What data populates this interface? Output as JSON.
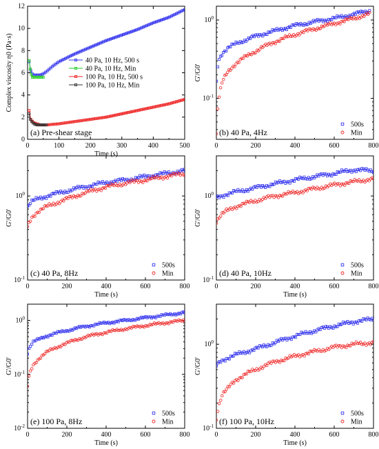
{
  "figure": {
    "panels": [
      {
        "id": "a",
        "panel_label": "(a) Pre-shear stage",
        "legend_position": "right-middle"
      },
      {
        "id": "b",
        "panel_label": "(b) 40 Pa, 4Hz",
        "legend_position": "bottom-right"
      },
      {
        "id": "c",
        "panel_label": "(c) 40 Pa, 8Hz",
        "legend_position": "bottom-right"
      },
      {
        "id": "d",
        "panel_label": "(d) 40 Pa, 10Hz",
        "legend_position": "bottom-right"
      },
      {
        "id": "e",
        "panel_label": "(e) 100 Pa, 8Hz",
        "legend_position": "bottom-right"
      },
      {
        "id": "f",
        "panel_label": "(f) 100 Pa, 10Hz",
        "legend_position": "bottom-right"
      }
    ]
  },
  "colors": {
    "blue": "#3333ee",
    "green": "#22cc22",
    "red": "#ee2222",
    "black": "#333333"
  },
  "chart_data": [
    {
      "type": "line",
      "panel": "a",
      "title": "(a) Pre-shear stage",
      "xlabel": "Time (s)",
      "ylabel": "Complex viscosity η0 (Pa·s)",
      "xlim": [
        0,
        500
      ],
      "ylim": [
        0,
        12
      ],
      "xticks": [
        0,
        100,
        200,
        300,
        400,
        500
      ],
      "yticks": [
        0,
        2,
        4,
        6,
        8,
        10,
        12
      ],
      "yscale": "linear",
      "grid": false,
      "legend": "right-middle",
      "series": [
        {
          "name": "40 Pa, 10 Hz, 500 s",
          "color": "#3333ee",
          "marker": "square",
          "x": [
            5,
            10,
            15,
            20,
            30,
            40,
            50,
            60,
            80,
            100,
            150,
            200,
            250,
            300,
            350,
            400,
            450,
            500
          ],
          "y": [
            7.0,
            6.2,
            5.9,
            5.8,
            5.8,
            5.8,
            5.9,
            6.1,
            6.6,
            7.0,
            7.7,
            8.3,
            8.9,
            9.4,
            9.9,
            10.5,
            11.0,
            11.7
          ]
        },
        {
          "name": "40 Pa, 10 Hz, Min",
          "color": "#22cc22",
          "marker": "square",
          "x": [
            5,
            10,
            15,
            20,
            30,
            40,
            50
          ],
          "y": [
            7.1,
            6.0,
            5.6,
            5.6,
            5.6,
            5.6,
            5.6
          ]
        },
        {
          "name": "100 Pa, 10 Hz, 500 s",
          "color": "#ee2222",
          "marker": "square",
          "x": [
            5,
            10,
            20,
            30,
            40,
            50,
            60,
            80,
            100,
            150,
            200,
            250,
            300,
            350,
            400,
            450,
            500
          ],
          "y": [
            2.6,
            1.8,
            1.5,
            1.4,
            1.3,
            1.3,
            1.3,
            1.35,
            1.4,
            1.6,
            1.8,
            2.0,
            2.3,
            2.6,
            2.9,
            3.2,
            3.6
          ]
        },
        {
          "name": "100 Pa, 10 Hz, Min",
          "color": "#333333",
          "marker": "square",
          "x": [
            5,
            10,
            20,
            30,
            40,
            50,
            60
          ],
          "y": [
            2.3,
            1.7,
            1.4,
            1.3,
            1.3,
            1.3,
            1.3
          ]
        }
      ]
    },
    {
      "type": "scatter",
      "panel": "b",
      "title": "(b) 40 Pa, 4Hz",
      "xlabel": "",
      "ylabel": "G'/G0'",
      "xlim": [
        0,
        800
      ],
      "yscale": "log",
      "ylim": [
        0.03,
        1.5
      ],
      "yticks": [
        0.1,
        1
      ],
      "xticks": [
        0,
        200,
        400,
        600,
        800
      ],
      "legend": "bottom-right",
      "series": [
        {
          "name": "500s",
          "color": "#3333ee",
          "marker": "square",
          "x": [
            0,
            10,
            30,
            60,
            100,
            200,
            300,
            400,
            500,
            600,
            700,
            780
          ],
          "y": [
            0.16,
            0.3,
            0.38,
            0.44,
            0.5,
            0.62,
            0.73,
            0.85,
            0.95,
            1.05,
            1.18,
            1.32
          ]
        },
        {
          "name": "Min",
          "color": "#ee2222",
          "marker": "circle",
          "x": [
            0,
            10,
            30,
            60,
            100,
            200,
            300,
            400,
            500,
            600,
            700,
            780
          ],
          "y": [
            0.035,
            0.09,
            0.16,
            0.22,
            0.28,
            0.4,
            0.53,
            0.65,
            0.77,
            0.9,
            1.05,
            1.2
          ]
        }
      ]
    },
    {
      "type": "scatter",
      "panel": "c",
      "title": "(c) 40 Pa, 8Hz",
      "xlabel": "Time (s)",
      "ylabel": "G'/G0'",
      "xlim": [
        0,
        800
      ],
      "yscale": "log",
      "ylim": [
        0.1,
        3
      ],
      "yticks": [
        0.1,
        1
      ],
      "xticks": [
        0,
        200,
        400,
        600,
        800
      ],
      "legend": "bottom-right",
      "series": [
        {
          "name": "500s",
          "color": "#3333ee",
          "marker": "square",
          "x": [
            0,
            20,
            50,
            100,
            200,
            300,
            400,
            500,
            600,
            700,
            800
          ],
          "y": [
            0.75,
            0.85,
            0.92,
            1.0,
            1.15,
            1.3,
            1.45,
            1.55,
            1.7,
            1.85,
            2.0
          ]
        },
        {
          "name": "Min",
          "color": "#ee2222",
          "marker": "circle",
          "x": [
            0,
            20,
            50,
            100,
            200,
            300,
            400,
            500,
            600,
            700,
            800
          ],
          "y": [
            0.42,
            0.55,
            0.65,
            0.75,
            0.92,
            1.1,
            1.28,
            1.42,
            1.55,
            1.7,
            1.85
          ]
        }
      ]
    },
    {
      "type": "scatter",
      "panel": "d",
      "title": "(d) 40 Pa, 10Hz",
      "xlabel": "Time (s)",
      "ylabel": "G'/G0'",
      "xlim": [
        0,
        800
      ],
      "yscale": "log",
      "ylim": [
        0.1,
        3
      ],
      "yticks": [
        0.1,
        1
      ],
      "xticks": [
        0,
        200,
        400,
        600,
        800
      ],
      "legend": "bottom-right",
      "series": [
        {
          "name": "500s",
          "color": "#3333ee",
          "marker": "square",
          "x": [
            0,
            50,
            100,
            200,
            300,
            400,
            500,
            600,
            700,
            800
          ],
          "y": [
            0.95,
            1.05,
            1.12,
            1.25,
            1.4,
            1.55,
            1.7,
            1.85,
            2.05,
            2.0
          ]
        },
        {
          "name": "Min",
          "color": "#ee2222",
          "marker": "circle",
          "x": [
            0,
            20,
            50,
            100,
            200,
            300,
            400,
            500,
            600,
            700,
            800
          ],
          "y": [
            0.5,
            0.58,
            0.66,
            0.75,
            0.88,
            1.0,
            1.1,
            1.22,
            1.35,
            1.48,
            1.6
          ]
        }
      ]
    },
    {
      "type": "scatter",
      "panel": "e",
      "title": "(e) 100 Pa, 8Hz",
      "xlabel": "Time (s)",
      "ylabel": "G'/G0'",
      "xlim": [
        0,
        800
      ],
      "yscale": "log",
      "ylim": [
        0.01,
        2
      ],
      "yticks": [
        0.01,
        0.1,
        1
      ],
      "xticks": [
        0,
        200,
        400,
        600,
        800
      ],
      "legend": "bottom-right",
      "series": [
        {
          "name": "500s",
          "color": "#3333ee",
          "marker": "square",
          "x": [
            0,
            10,
            30,
            60,
            100,
            200,
            300,
            400,
            500,
            600,
            700,
            800
          ],
          "y": [
            0.25,
            0.32,
            0.4,
            0.45,
            0.52,
            0.65,
            0.78,
            0.9,
            1.0,
            1.12,
            1.25,
            1.4
          ]
        },
        {
          "name": "Min",
          "color": "#ee2222",
          "marker": "circle",
          "x": [
            0,
            10,
            30,
            60,
            100,
            200,
            300,
            400,
            500,
            600,
            700,
            800
          ],
          "y": [
            0.06,
            0.1,
            0.15,
            0.2,
            0.26,
            0.38,
            0.5,
            0.6,
            0.7,
            0.8,
            0.9,
            1.0
          ]
        }
      ]
    },
    {
      "type": "scatter",
      "panel": "f",
      "title": "(f) 100 Pa, 10Hz",
      "xlabel": "Time (s)",
      "ylabel": "G'/G0'",
      "xlim": [
        0,
        800
      ],
      "yscale": "log",
      "ylim": [
        0.1,
        3
      ],
      "yticks": [
        0.1,
        1
      ],
      "xticks": [
        0,
        200,
        400,
        600,
        800
      ],
      "legend": "bottom-right",
      "series": [
        {
          "name": "500s",
          "color": "#3333ee",
          "marker": "square",
          "x": [
            0,
            20,
            50,
            100,
            200,
            300,
            400,
            500,
            600,
            700,
            800
          ],
          "y": [
            0.55,
            0.62,
            0.68,
            0.75,
            0.88,
            1.05,
            1.25,
            1.45,
            1.65,
            1.85,
            2.0
          ]
        },
        {
          "name": "Min",
          "color": "#ee2222",
          "marker": "circle",
          "x": [
            0,
            10,
            30,
            60,
            100,
            200,
            300,
            400,
            500,
            600,
            700,
            800
          ],
          "y": [
            0.13,
            0.18,
            0.25,
            0.3,
            0.38,
            0.5,
            0.62,
            0.72,
            0.82,
            0.92,
            1.0,
            1.05
          ]
        }
      ]
    }
  ]
}
